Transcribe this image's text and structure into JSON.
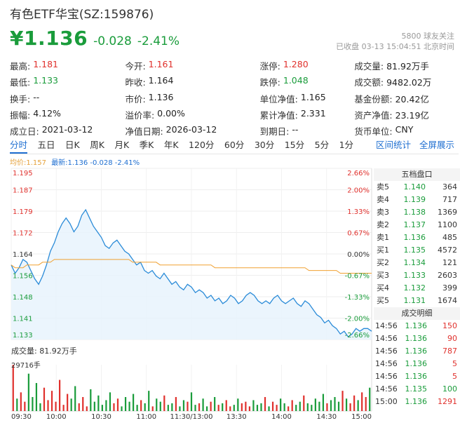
{
  "header": {
    "title": "有色ETF华宝(SZ:159876)",
    "price": "¥1.136",
    "change": "-0.028",
    "change_pct": "-2.41%",
    "followers": "5800 球友关注",
    "status_line": "已收盘 03-13 15:04:51 北京时间"
  },
  "stats": [
    [
      {
        "l": "最高:",
        "v": "1.181",
        "c": "up"
      },
      {
        "l": "今开:",
        "v": "1.161",
        "c": "up"
      },
      {
        "l": "涨停:",
        "v": "1.280",
        "c": "up"
      },
      {
        "l": "成交量:",
        "v": "81.92万手",
        "c": ""
      }
    ],
    [
      {
        "l": "最低:",
        "v": "1.133",
        "c": "down"
      },
      {
        "l": "昨收:",
        "v": "1.164",
        "c": ""
      },
      {
        "l": "跌停:",
        "v": "1.048",
        "c": "down"
      },
      {
        "l": "成交额:",
        "v": "9482.02万",
        "c": ""
      }
    ],
    [
      {
        "l": "换手:",
        "v": "--",
        "c": ""
      },
      {
        "l": "市价:",
        "v": "1.136",
        "c": ""
      },
      {
        "l": "单位净值:",
        "v": "1.165",
        "c": ""
      },
      {
        "l": "基金份额:",
        "v": "20.42亿",
        "c": ""
      }
    ],
    [
      {
        "l": "振幅:",
        "v": "4.12%",
        "c": ""
      },
      {
        "l": "溢价率:",
        "v": "0.00%",
        "c": ""
      },
      {
        "l": "累计净值:",
        "v": "2.331",
        "c": ""
      },
      {
        "l": "资产净值:",
        "v": "23.19亿",
        "c": ""
      }
    ],
    [
      {
        "l": "成立日:",
        "v": "2021-03-12",
        "c": ""
      },
      {
        "l": "净值日期:",
        "v": "2026-03-12",
        "c": ""
      },
      {
        "l": "到期日:",
        "v": "--",
        "c": ""
      },
      {
        "l": "货币单位:",
        "v": "CNY",
        "c": ""
      }
    ]
  ],
  "tabs": [
    "分时",
    "五日",
    "日K",
    "周K",
    "月K",
    "季K",
    "年K",
    "120分",
    "60分",
    "30分",
    "15分",
    "5分",
    "1分"
  ],
  "tab_right": [
    "区间统计",
    "全屏展示"
  ],
  "legend": {
    "avg": "均价:1.157",
    "latest": "最新:1.136 -0.028 -2.41%"
  },
  "colors": {
    "up": "#e0312d",
    "down": "#1a9c3b",
    "line": "#2a8bd8",
    "avg": "#f0a030",
    "accent": "#1f6fd1"
  },
  "chart_data": {
    "type": "line",
    "price_ticks": [
      "1.195",
      "1.187",
      "1.179",
      "1.172",
      "1.164",
      "1.156",
      "1.148",
      "1.141",
      "1.133"
    ],
    "pct_ticks": [
      "2.66%",
      "2.00%",
      "1.33%",
      "0.67%",
      "0.00%",
      "-0.67%",
      "-1.33%",
      "-2.00%",
      "-2.66%"
    ],
    "time_ticks": [
      "09:30",
      "10:00",
      "10:30",
      "11:00",
      "11:30/13:00",
      "13:30",
      "14:00",
      "14:30",
      "15:00"
    ],
    "ylim": [
      1.133,
      1.195
    ],
    "prev_close": 1.164,
    "series": [
      {
        "values": [
          1.16,
          1.157,
          1.159,
          1.162,
          1.161,
          1.158,
          1.155,
          1.153,
          1.156,
          1.16,
          1.165,
          1.168,
          1.172,
          1.175,
          1.177,
          1.175,
          1.172,
          1.174,
          1.178,
          1.18,
          1.177,
          1.174,
          1.172,
          1.17,
          1.167,
          1.166,
          1.168,
          1.169,
          1.167,
          1.165,
          1.164,
          1.162,
          1.16,
          1.161,
          1.158,
          1.157,
          1.158,
          1.156,
          1.155,
          1.157,
          1.155,
          1.153,
          1.154,
          1.152,
          1.151,
          1.153,
          1.152,
          1.15,
          1.151,
          1.15,
          1.148,
          1.149,
          1.147,
          1.148,
          1.146,
          1.147,
          1.149,
          1.148,
          1.146,
          1.147,
          1.149,
          1.15,
          1.149,
          1.147,
          1.146,
          1.147,
          1.146,
          1.148,
          1.149,
          1.147,
          1.146,
          1.147,
          1.148,
          1.146,
          1.145,
          1.147,
          1.146,
          1.144,
          1.142,
          1.141,
          1.139,
          1.14,
          1.138,
          1.137,
          1.135,
          1.136,
          1.134,
          1.135,
          1.137,
          1.136,
          1.137,
          1.137,
          1.136
        ]
      },
      {
        "values": [
          1.16,
          1.159,
          1.159,
          1.159,
          1.16,
          1.16,
          1.16,
          1.16,
          1.161,
          1.161,
          1.161,
          1.162,
          1.162,
          1.162,
          1.162,
          1.162,
          1.162,
          1.162,
          1.162,
          1.162,
          1.162,
          1.162,
          1.162,
          1.162,
          1.162,
          1.162,
          1.162,
          1.162,
          1.162,
          1.162,
          1.162,
          1.161,
          1.161,
          1.161,
          1.161,
          1.161,
          1.161,
          1.161,
          1.16,
          1.16,
          1.16,
          1.16,
          1.16,
          1.16,
          1.16,
          1.16,
          1.16,
          1.16,
          1.16,
          1.16,
          1.16,
          1.16,
          1.159,
          1.159,
          1.159,
          1.159,
          1.159,
          1.159,
          1.159,
          1.159,
          1.159,
          1.159,
          1.159,
          1.159,
          1.159,
          1.159,
          1.159,
          1.159,
          1.159,
          1.159,
          1.159,
          1.159,
          1.159,
          1.159,
          1.159,
          1.159,
          1.158,
          1.158,
          1.158,
          1.158,
          1.158,
          1.158,
          1.158,
          1.158,
          1.157,
          1.157,
          1.157,
          1.157,
          1.157,
          1.157,
          1.157,
          1.157,
          1.157
        ]
      }
    ],
    "volume_label": "成交量: 81.92万手",
    "volume_max": "29716手",
    "volumes": [
      29716,
      8000,
      12000,
      6000,
      24000,
      9000,
      18000,
      5000,
      15000,
      7000,
      13000,
      6000,
      20000,
      4000,
      11000,
      8000,
      16000,
      5000,
      9000,
      3000,
      14000,
      6000,
      10000,
      4000,
      7000,
      12000,
      5000,
      8000,
      3000,
      9000,
      6000,
      11000,
      4000,
      7000,
      5000,
      13000,
      3000,
      8000,
      6000,
      10000,
      4000,
      5000,
      9000,
      3000,
      7000,
      6000,
      12000,
      4000,
      5000,
      8000,
      3000,
      6000,
      9000,
      4000,
      5000,
      7000,
      3000,
      4000,
      8000,
      5000,
      6000,
      3000,
      7000,
      4000,
      5000,
      9000,
      3000,
      6000,
      4000,
      8000,
      5000,
      3000,
      7000,
      4000,
      6000,
      10000,
      5000,
      4000,
      8000,
      6000,
      11000,
      5000,
      7000,
      9000,
      6000,
      13000,
      8000,
      5000,
      10000,
      7000,
      12000,
      9000,
      15000
    ]
  },
  "orderbook": {
    "title": "五档盘口",
    "rows": [
      {
        "l": "卖5",
        "p": "1.140",
        "v": "364"
      },
      {
        "l": "卖4",
        "p": "1.139",
        "v": "717"
      },
      {
        "l": "卖3",
        "p": "1.138",
        "v": "1369"
      },
      {
        "l": "卖2",
        "p": "1.137",
        "v": "1100"
      },
      {
        "l": "卖1",
        "p": "1.136",
        "v": "485"
      },
      {
        "l": "买1",
        "p": "1.135",
        "v": "4572"
      },
      {
        "l": "买2",
        "p": "1.134",
        "v": "121"
      },
      {
        "l": "买3",
        "p": "1.133",
        "v": "2603"
      },
      {
        "l": "买4",
        "p": "1.132",
        "v": "399"
      },
      {
        "l": "买5",
        "p": "1.131",
        "v": "1674"
      }
    ]
  },
  "trades": {
    "title": "成交明细",
    "rows": [
      {
        "t": "14:56",
        "p": "1.136",
        "v": "150",
        "c": "up"
      },
      {
        "t": "14:56",
        "p": "1.136",
        "v": "90",
        "c": "up"
      },
      {
        "t": "14:56",
        "p": "1.136",
        "v": "787",
        "c": "up"
      },
      {
        "t": "14:56",
        "p": "1.136",
        "v": "5",
        "c": "up"
      },
      {
        "t": "14:56",
        "p": "1.136",
        "v": "5",
        "c": "up"
      },
      {
        "t": "14:56",
        "p": "1.135",
        "v": "100",
        "c": "down"
      },
      {
        "t": "15:00",
        "p": "1.136",
        "v": "1291",
        "c": "up"
      }
    ]
  }
}
